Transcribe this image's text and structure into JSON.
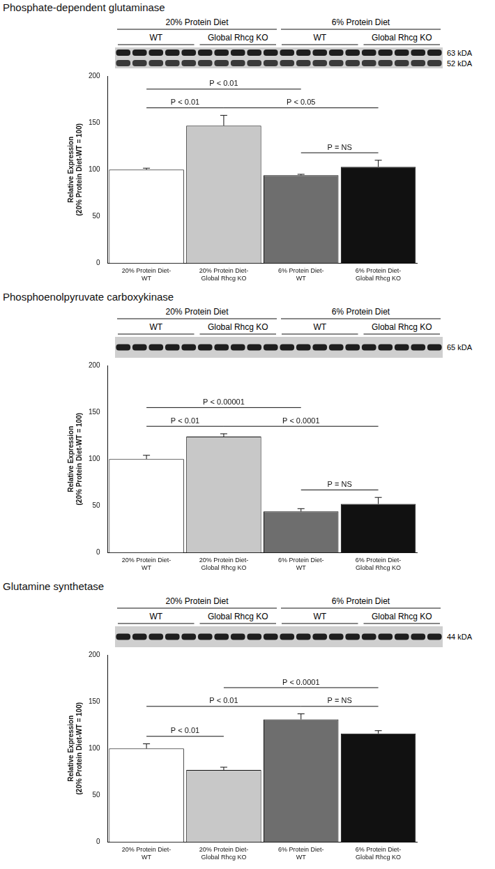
{
  "chart_data": [
    {
      "type": "bar",
      "title": "Phosphate-dependent glutaminase",
      "blot": {
        "groups": [
          {
            "label": "20% Protein Diet",
            "subgroups": [
              "WT",
              "Global Rhcg KO"
            ]
          },
          {
            "label": "6% Protein Diet",
            "subgroups": [
              "WT",
              "Global Rhcg KO"
            ]
          }
        ],
        "lanes_per_subgroup": 5,
        "bands": [
          "63 kDA",
          "52 kDA"
        ]
      },
      "categories": [
        "20% Protein Diet-WT",
        "20% Protein Diet-Global Rhcg KO",
        "6% Protein Diet-WT",
        "6% Protein Diet-Global Rhcg KO"
      ],
      "values": [
        100,
        147,
        94,
        103
      ],
      "errors": [
        1.5,
        11,
        1,
        7
      ],
      "colors": [
        "#ffffff",
        "#c8c8c8",
        "#6e6e6e",
        "#111111"
      ],
      "y_label": [
        "Relative Expression",
        "(20% Protein Diet-WT = 100)"
      ],
      "ylim": [
        0,
        200
      ],
      "yticks": [
        0,
        50,
        100,
        150,
        200
      ],
      "grid": false,
      "comparisons": [
        {
          "between": [
            "20% Protein Diet-WT",
            "20% Protein Diet-Global Rhcg KO"
          ],
          "label": "P < 0.01"
        },
        {
          "between": [
            "20% Protein Diet-Global Rhcg KO",
            "6% Protein Diet-Global Rhcg KO"
          ],
          "label": "P < 0.05"
        },
        {
          "between": [
            "20% Protein Diet-WT",
            "6% Protein Diet-WT"
          ],
          "label": "P < 0.01"
        },
        {
          "between": [
            "6% Protein Diet-WT",
            "6% Protein Diet-Global Rhcg KO"
          ],
          "label": "P = NS"
        }
      ]
    },
    {
      "type": "bar",
      "title": "Phosphoenolpyruvate carboxykinase",
      "blot": {
        "groups": [
          {
            "label": "20% Protein Diet",
            "subgroups": [
              "WT",
              "Global Rhcg KO"
            ]
          },
          {
            "label": "6% Protein Diet",
            "subgroups": [
              "WT",
              "Global Rhcg KO"
            ]
          }
        ],
        "lanes_per_subgroup": 5,
        "bands": [
          "65 kDA"
        ]
      },
      "categories": [
        "20% Protein Diet-WT",
        "20% Protein Diet-Global Rhcg KO",
        "6% Protein Diet-WT",
        "6% Protein Diet-Global Rhcg KO"
      ],
      "values": [
        100,
        124,
        44,
        52
      ],
      "errors": [
        4,
        3,
        3,
        7
      ],
      "colors": [
        "#ffffff",
        "#c8c8c8",
        "#6e6e6e",
        "#111111"
      ],
      "y_label": [
        "Relative Expression",
        "(20% Protein Diet-WT = 100)"
      ],
      "ylim": [
        0,
        200
      ],
      "yticks": [
        0,
        50,
        100,
        150,
        200
      ],
      "grid": false,
      "comparisons": [
        {
          "between": [
            "20% Protein Diet-WT",
            "20% Protein Diet-Global Rhcg KO"
          ],
          "label": "P < 0.01"
        },
        {
          "between": [
            "20% Protein Diet-Global Rhcg KO",
            "6% Protein Diet-Global Rhcg KO"
          ],
          "label": "P < 0.0001"
        },
        {
          "between": [
            "20% Protein Diet-WT",
            "6% Protein Diet-WT"
          ],
          "label": "P < 0.00001"
        },
        {
          "between": [
            "6% Protein Diet-WT",
            "6% Protein Diet-Global Rhcg KO"
          ],
          "label": "P = NS"
        }
      ]
    },
    {
      "type": "bar",
      "title": "Glutamine synthetase",
      "blot": {
        "groups": [
          {
            "label": "20% Protein Diet",
            "subgroups": [
              "WT",
              "Global Rhcg KO"
            ]
          },
          {
            "label": "6% Protein Diet",
            "subgroups": [
              "WT",
              "Global Rhcg KO"
            ]
          }
        ],
        "lanes_per_subgroup": 5,
        "bands": [
          "44 kDA"
        ]
      },
      "categories": [
        "20% Protein Diet-WT",
        "20% Protein Diet-Global Rhcg KO",
        "6% Protein Diet-WT",
        "6% Protein Diet-Global Rhcg KO"
      ],
      "values": [
        100,
        77,
        131,
        116
      ],
      "errors": [
        5,
        3,
        6,
        3
      ],
      "colors": [
        "#ffffff",
        "#c8c8c8",
        "#6e6e6e",
        "#111111"
      ],
      "y_label": [
        "Relative Expression",
        "(20% Protein Diet-WT = 100)"
      ],
      "ylim": [
        0,
        200
      ],
      "yticks": [
        0,
        50,
        100,
        150,
        200
      ],
      "grid": false,
      "comparisons": [
        {
          "between": [
            "20% Protein Diet-WT",
            "20% Protein Diet-Global Rhcg KO"
          ],
          "label": "P < 0.01"
        },
        {
          "between": [
            "20% Protein Diet-WT",
            "6% Protein Diet-WT"
          ],
          "label": "P < 0.01"
        },
        {
          "between": [
            "6% Protein Diet-WT",
            "6% Protein Diet-Global Rhcg KO"
          ],
          "label": "P = NS"
        },
        {
          "between": [
            "20% Protein Diet-Global Rhcg KO",
            "6% Protein Diet-Global Rhcg KO"
          ],
          "label": "P < 0.0001"
        }
      ]
    }
  ]
}
